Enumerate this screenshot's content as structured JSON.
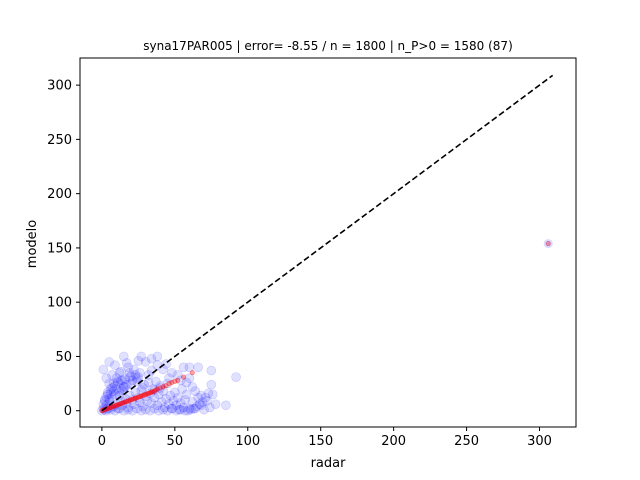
{
  "chart_data": {
    "type": "scatter",
    "title": "syna17PAR005 | error= -8.55 / n = 1800 | n_P>0 = 1580 (87)",
    "xlabel": "radar",
    "ylabel": "modelo",
    "xlim": [
      -15,
      325
    ],
    "ylim": [
      -15,
      325
    ],
    "xticks": [
      0,
      50,
      100,
      150,
      200,
      250,
      300
    ],
    "yticks": [
      0,
      50,
      100,
      150,
      200,
      250,
      300
    ],
    "grid": false,
    "colors": {
      "radar_points": "#0000ff",
      "fit_points": "#ff0000",
      "reference_line": "#000000"
    },
    "reference_line": {
      "style": "dashed",
      "from": [
        0,
        0
      ],
      "to": [
        309,
        309
      ]
    },
    "series": [
      {
        "marker": "circle",
        "color": "#0000ff",
        "alpha": 0.12,
        "points": [
          [
            0,
            0
          ],
          [
            1,
            2
          ],
          [
            2,
            1
          ],
          [
            3,
            5
          ],
          [
            4,
            2
          ],
          [
            5,
            8
          ],
          [
            6,
            3
          ],
          [
            7,
            12
          ],
          [
            8,
            4
          ],
          [
            9,
            15
          ],
          [
            10,
            6
          ],
          [
            11,
            2
          ],
          [
            12,
            18
          ],
          [
            13,
            9
          ],
          [
            14,
            5
          ],
          [
            15,
            22
          ],
          [
            16,
            11
          ],
          [
            17,
            7
          ],
          [
            18,
            3
          ],
          [
            19,
            14
          ],
          [
            20,
            25
          ],
          [
            21,
            10
          ],
          [
            22,
            6
          ],
          [
            23,
            17
          ],
          [
            24,
            30
          ],
          [
            25,
            12
          ],
          [
            26,
            8
          ],
          [
            27,
            19
          ],
          [
            28,
            4
          ],
          [
            29,
            24
          ],
          [
            30,
            13
          ],
          [
            31,
            9
          ],
          [
            32,
            33
          ],
          [
            33,
            16
          ],
          [
            34,
            7
          ],
          [
            35,
            20
          ],
          [
            36,
            12
          ],
          [
            37,
            27
          ],
          [
            38,
            5
          ],
          [
            39,
            15
          ],
          [
            40,
            21
          ],
          [
            41,
            8
          ],
          [
            42,
            18
          ],
          [
            43,
            3
          ],
          [
            44,
            11
          ],
          [
            45,
            25
          ],
          [
            46,
            6
          ],
          [
            47,
            14
          ],
          [
            48,
            2
          ],
          [
            49,
            9
          ],
          [
            50,
            17
          ],
          [
            51,
            5
          ],
          [
            52,
            12
          ],
          [
            53,
            1
          ],
          [
            54,
            7
          ],
          [
            55,
            20
          ],
          [
            56,
            3
          ],
          [
            57,
            10
          ],
          [
            58,
            15
          ],
          [
            60,
            30
          ],
          [
            62,
            8
          ],
          [
            64,
            2
          ],
          [
            66,
            12
          ],
          [
            68,
            5
          ],
          [
            70,
            1
          ],
          [
            72,
            9
          ],
          [
            74,
            3
          ],
          [
            76,
            15
          ],
          [
            78,
            6
          ],
          [
            85,
            5
          ],
          [
            2,
            10
          ],
          [
            4,
            15
          ],
          [
            6,
            20
          ],
          [
            8,
            25
          ],
          [
            10,
            30
          ],
          [
            12,
            35
          ],
          [
            14,
            28
          ],
          [
            16,
            22
          ],
          [
            18,
            40
          ],
          [
            20,
            32
          ],
          [
            22,
            38
          ],
          [
            24,
            27
          ],
          [
            26,
            35
          ],
          [
            28,
            21
          ],
          [
            30,
            45
          ],
          [
            32,
            26
          ],
          [
            34,
            37
          ],
          [
            36,
            19
          ],
          [
            38,
            42
          ],
          [
            40,
            23
          ],
          [
            1,
            38
          ],
          [
            3,
            30
          ],
          [
            5,
            25
          ],
          [
            7,
            33
          ],
          [
            9,
            42
          ],
          [
            11,
            27
          ],
          [
            13,
            36
          ],
          [
            15,
            20
          ],
          [
            17,
            44
          ],
          [
            19,
            31
          ],
          [
            15,
            50
          ],
          [
            27,
            50
          ],
          [
            38,
            50
          ],
          [
            34,
            48
          ],
          [
            25,
            46
          ],
          [
            5,
            45
          ],
          [
            44,
            43
          ],
          [
            60,
            40
          ],
          [
            66,
            40
          ],
          [
            75,
            37
          ],
          [
            56,
            40
          ],
          [
            48,
            35
          ],
          [
            52,
            33
          ],
          [
            42,
            38
          ],
          [
            46,
            30
          ],
          [
            54,
            28
          ],
          [
            58,
            26
          ],
          [
            62,
            22
          ],
          [
            64,
            18
          ],
          [
            68,
            14
          ],
          [
            92,
            31
          ],
          [
            75,
            24
          ],
          [
            73,
            16
          ],
          [
            71,
            12
          ],
          [
            69,
            8
          ],
          [
            67,
            6
          ],
          [
            65,
            4
          ],
          [
            63,
            2
          ],
          [
            61,
            1
          ],
          [
            59,
            0
          ],
          [
            3,
            0
          ],
          [
            6,
            1
          ],
          [
            9,
            0
          ],
          [
            12,
            2
          ],
          [
            15,
            0
          ],
          [
            18,
            1
          ],
          [
            21,
            0
          ],
          [
            24,
            2
          ],
          [
            27,
            0
          ],
          [
            30,
            1
          ],
          [
            33,
            0
          ],
          [
            36,
            2
          ],
          [
            39,
            0
          ],
          [
            42,
            1
          ],
          [
            45,
            0
          ],
          [
            48,
            2
          ],
          [
            51,
            0
          ],
          [
            54,
            1
          ],
          [
            57,
            0
          ],
          [
            60,
            2
          ],
          [
            1,
            6
          ],
          [
            2,
            9
          ],
          [
            3,
            13
          ],
          [
            4,
            17
          ],
          [
            5,
            11
          ],
          [
            6,
            16
          ],
          [
            7,
            21
          ],
          [
            8,
            18
          ],
          [
            9,
            23
          ],
          [
            10,
            20
          ],
          [
            11,
            26
          ],
          [
            12,
            14
          ],
          [
            13,
            28
          ],
          [
            14,
            19
          ],
          [
            16,
            29
          ],
          [
            17,
            24
          ],
          [
            19,
            35
          ],
          [
            21,
            28
          ],
          [
            23,
            33
          ],
          [
            25,
            31
          ]
        ]
      },
      {
        "marker": "circle",
        "color": "#ff0000",
        "alpha": 0.35,
        "points": [
          [
            0,
            0
          ],
          [
            1,
            0.5
          ],
          [
            2,
            1
          ],
          [
            3,
            1.5
          ],
          [
            4,
            2
          ],
          [
            5,
            2.5
          ],
          [
            6,
            3
          ],
          [
            7,
            3.5
          ],
          [
            8,
            4
          ],
          [
            9,
            4.5
          ],
          [
            10,
            5
          ],
          [
            11,
            5.5
          ],
          [
            12,
            6
          ],
          [
            13,
            6.5
          ],
          [
            14,
            7
          ],
          [
            15,
            7.5
          ],
          [
            16,
            8
          ],
          [
            17,
            8.5
          ],
          [
            18,
            9
          ],
          [
            19,
            9.5
          ],
          [
            20,
            10
          ],
          [
            21,
            10.5
          ],
          [
            22,
            11
          ],
          [
            23,
            11.5
          ],
          [
            24,
            12
          ],
          [
            25,
            12.5
          ],
          [
            26,
            13
          ],
          [
            27,
            13.5
          ],
          [
            28,
            14
          ],
          [
            29,
            14.5
          ],
          [
            30,
            15
          ],
          [
            31,
            15.5
          ],
          [
            32,
            16
          ],
          [
            33,
            16.5
          ],
          [
            34,
            17
          ],
          [
            35,
            17.5
          ],
          [
            36,
            18
          ],
          [
            37,
            19
          ],
          [
            38,
            20
          ],
          [
            40,
            21
          ],
          [
            42,
            22
          ],
          [
            44,
            23
          ],
          [
            46,
            25
          ],
          [
            48,
            26
          ],
          [
            50,
            27
          ],
          [
            52,
            28
          ],
          [
            56,
            31
          ],
          [
            62,
            35
          ],
          [
            306,
            154
          ]
        ]
      }
    ]
  }
}
